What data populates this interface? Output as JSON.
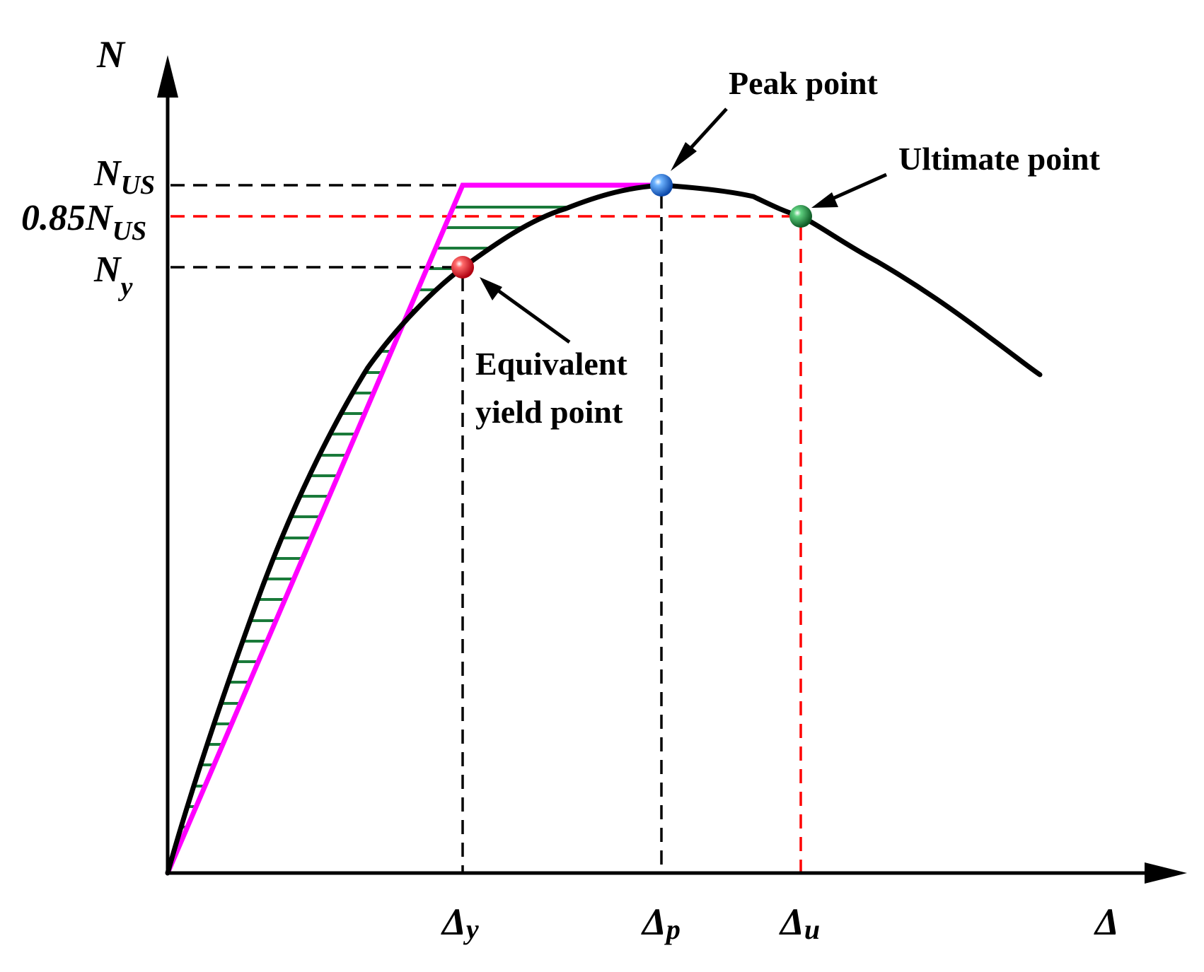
{
  "axes": {
    "y_label": "N",
    "x_label": "Δ"
  },
  "y_ticks": [
    {
      "main": "N",
      "sub": "US"
    },
    {
      "main": "0.85N",
      "sub": "US"
    },
    {
      "main": "N",
      "sub": "y"
    }
  ],
  "x_ticks": [
    {
      "main": "Δ",
      "sub": "y"
    },
    {
      "main": "Δ",
      "sub": "p"
    },
    {
      "main": "Δ",
      "sub": "u"
    }
  ],
  "annotations": {
    "peak": "Peak point",
    "ultimate": "Ultimate point",
    "yield_line1": "Equivalent",
    "yield_line2": "yield point"
  },
  "colors": {
    "curve": "#000000",
    "bilinear": "#ff00ff",
    "hatch": "#1a7a3a",
    "ref_black": "#000000",
    "ref_red": "#ff0000",
    "yield_point": "#e8141c",
    "peak_point": "#1e6fe0",
    "ultimate_point": "#1a8a3c"
  },
  "marker_icons": {
    "yield": "red-sphere-icon",
    "peak": "blue-sphere-icon",
    "ultimate": "green-sphere-icon"
  }
}
